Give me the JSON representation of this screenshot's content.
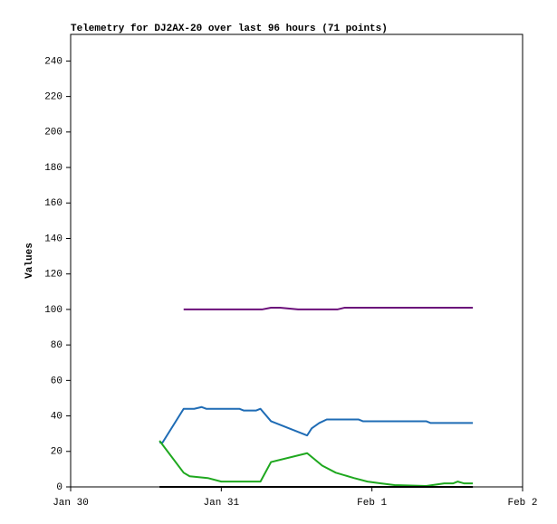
{
  "chart_data": {
    "type": "line",
    "title": "Telemetry for DJ2AX-20 over last 96 hours (71 points)",
    "y_label": "Values",
    "xlim": [
      0,
      3
    ],
    "xticks": [
      {
        "value": 0,
        "label": "Jan 30"
      },
      {
        "value": 1,
        "label": "Jan 31"
      },
      {
        "value": 2,
        "label": "Feb 1"
      },
      {
        "value": 3,
        "label": "Feb 2"
      }
    ],
    "ylim": [
      0,
      255
    ],
    "yticks": [
      0,
      20,
      40,
      60,
      80,
      100,
      120,
      140,
      160,
      180,
      200,
      220,
      240
    ],
    "series": [
      {
        "color": "#6b0f7a",
        "x": [
          0.75,
          1.27,
          1.33,
          1.39,
          1.51,
          1.77,
          1.82,
          2.67
        ],
        "values": [
          100,
          100,
          101,
          101,
          100,
          100,
          101,
          101
        ]
      },
      {
        "color": "#1f6cb5",
        "x": [
          0.59,
          0.61,
          0.75,
          0.82,
          0.87,
          0.9,
          1.12,
          1.15,
          1.23,
          1.26,
          1.33,
          1.57,
          1.6,
          1.65,
          1.7,
          1.91,
          1.94,
          2.36,
          2.39,
          2.67
        ],
        "values": [
          25,
          25,
          44,
          44,
          45,
          44,
          44,
          43,
          43,
          44,
          37,
          29,
          33,
          36,
          38,
          38,
          37,
          37,
          36,
          36
        ]
      },
      {
        "color": "#1fa81f",
        "x": [
          0.59,
          0.75,
          0.79,
          0.91,
          1.0,
          1.26,
          1.33,
          1.57,
          1.67,
          1.76,
          1.88,
          1.97,
          2.06,
          2.15,
          2.36,
          2.48,
          2.54,
          2.57,
          2.61,
          2.67
        ],
        "values": [
          26,
          8,
          6,
          5,
          3,
          3,
          14,
          19,
          12,
          8,
          5,
          3,
          2,
          1,
          0.5,
          2,
          2,
          3,
          2,
          2
        ]
      },
      {
        "color": "#000000",
        "x": [
          0.59,
          2.67
        ],
        "values": [
          0,
          0
        ]
      }
    ]
  }
}
